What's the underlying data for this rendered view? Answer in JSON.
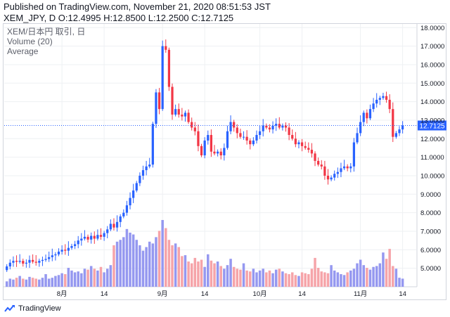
{
  "header": {
    "published": "Published on TradingView.com, November 21, 2020 08:51:53 JST",
    "ohlc": "XEM_JPY, D O:12.4995 H:12.8500 L:12.2500 C:12.7125"
  },
  "legend": {
    "symbol": "XEM/日本円 取引, 日",
    "volume": "Volume (20)",
    "average": "Average"
  },
  "footer": {
    "brand": "TradingView"
  },
  "colors": {
    "up": "#2962ff",
    "down": "#f23645",
    "vol_up": "#9598f0",
    "vol_down": "#f6a4a9",
    "last_price_line": "#2962ff"
  },
  "chart_data": {
    "type": "candlestick",
    "y_axis": {
      "min": 4.0,
      "max": 18.2,
      "ticks": [
        "18.0000",
        "17.0000",
        "16.0000",
        "15.0000",
        "14.0000",
        "13.0000",
        "12.0000",
        "11.0000",
        "10.0000",
        "9.0000",
        "8.0000",
        "7.0000",
        "6.0000",
        "5.0000"
      ],
      "tick_values": [
        18,
        17,
        16,
        15,
        14,
        13,
        12,
        11,
        10,
        9,
        8,
        7,
        6,
        5
      ]
    },
    "x_axis": {
      "labels": [
        {
          "text": "8月",
          "index": 17
        },
        {
          "text": "14",
          "index": 30
        },
        {
          "text": "9月",
          "index": 48
        },
        {
          "text": "14",
          "index": 61
        },
        {
          "text": "10月",
          "index": 78
        },
        {
          "text": "14",
          "index": 91
        },
        {
          "text": "11月",
          "index": 109
        },
        {
          "text": "14",
          "index": 122
        }
      ]
    },
    "last_price": "12.7125",
    "last_value": 12.7125,
    "closes": [
      5.1,
      5.3,
      5.4,
      5.35,
      5.4,
      5.25,
      5.3,
      5.45,
      5.35,
      5.3,
      5.4,
      5.45,
      5.5,
      5.6,
      5.7,
      5.75,
      5.9,
      6.0,
      5.95,
      6.1,
      6.2,
      6.3,
      6.5,
      6.6,
      6.7,
      6.55,
      6.75,
      6.6,
      6.8,
      6.7,
      6.9,
      7.1,
      7.4,
      7.2,
      7.5,
      7.8,
      8.0,
      8.4,
      8.8,
      9.2,
      9.6,
      10.0,
      10.3,
      10.5,
      10.6,
      12.8,
      14.5,
      13.6,
      17.0,
      16.8,
      14.8,
      13.3,
      13.6,
      13.3,
      13.2,
      13.4,
      12.9,
      12.6,
      12.4,
      11.6,
      11.1,
      11.9,
      12.2,
      11.3,
      11.2,
      11.3,
      11.1,
      11.5,
      12.4,
      12.9,
      12.6,
      12.3,
      12.1,
      12.1,
      11.9,
      11.7,
      11.9,
      12.2,
      12.4,
      12.7,
      12.6,
      12.5,
      12.7,
      12.8,
      12.6,
      12.7,
      12.6,
      12.2,
      12.0,
      11.7,
      11.8,
      11.6,
      11.5,
      11.4,
      11.2,
      10.8,
      10.6,
      10.5,
      10.0,
      9.8,
      9.9,
      10.1,
      10.2,
      10.4,
      10.5,
      10.4,
      10.5,
      11.8,
      12.3,
      12.9,
      13.4,
      13.1,
      13.6,
      13.9,
      14.1,
      14.2,
      14.3,
      14.1,
      13.6,
      12.1,
      12.3,
      12.5,
      12.71
    ],
    "opens": [
      4.9,
      5.1,
      5.3,
      5.4,
      5.35,
      5.4,
      5.25,
      5.3,
      5.45,
      5.35,
      5.3,
      5.4,
      5.45,
      5.5,
      5.6,
      5.7,
      5.75,
      5.9,
      6.0,
      5.95,
      6.1,
      6.2,
      6.3,
      6.5,
      6.6,
      6.7,
      6.55,
      6.75,
      6.6,
      6.8,
      6.7,
      6.9,
      7.1,
      7.4,
      7.2,
      7.5,
      7.8,
      8.0,
      8.4,
      8.8,
      9.2,
      9.6,
      10.0,
      10.3,
      10.5,
      10.6,
      12.8,
      14.5,
      13.6,
      17.0,
      16.8,
      14.8,
      13.3,
      13.6,
      13.3,
      13.2,
      13.4,
      12.9,
      12.6,
      12.4,
      11.6,
      11.1,
      11.9,
      12.2,
      11.3,
      11.2,
      11.3,
      11.1,
      11.5,
      12.4,
      12.9,
      12.6,
      12.3,
      12.1,
      12.1,
      11.9,
      11.7,
      11.9,
      12.2,
      12.4,
      12.7,
      12.6,
      12.5,
      12.7,
      12.8,
      12.6,
      12.7,
      12.6,
      12.2,
      12.0,
      11.7,
      11.8,
      11.6,
      11.5,
      11.4,
      11.2,
      10.8,
      10.6,
      10.5,
      10.0,
      9.8,
      9.9,
      10.1,
      10.2,
      10.4,
      10.5,
      10.4,
      10.5,
      11.8,
      12.3,
      12.9,
      13.4,
      13.1,
      13.6,
      13.9,
      14.1,
      14.2,
      14.3,
      14.1,
      13.6,
      12.1,
      12.3,
      12.5
    ],
    "volumes": [
      0.6,
      0.9,
      0.8,
      1.0,
      1.2,
      0.9,
      0.8,
      1.1,
      1.0,
      0.9,
      0.8,
      1.0,
      1.4,
      0.9,
      1.0,
      1.2,
      1.3,
      1.5,
      1.4,
      2.1,
      1.8,
      1.6,
      1.7,
      1.5,
      2.0,
      1.9,
      2.3,
      2.0,
      1.8,
      2.2,
      1.6,
      2.0,
      2.4,
      4.6,
      5.0,
      5.2,
      5.5,
      6.4,
      6.0,
      5.8,
      5.2,
      4.6,
      4.0,
      4.4,
      5.0,
      4.8,
      5.5,
      6.2,
      7.4,
      6.5,
      5.2,
      4.6,
      4.8,
      4.4,
      3.4,
      3.5,
      2.8,
      2.6,
      3.2,
      2.8,
      3.0,
      2.2,
      3.6,
      2.9,
      2.6,
      2.8,
      2.3,
      2.0,
      2.4,
      3.1,
      2.2,
      2.0,
      1.9,
      2.6,
      1.8,
      1.7,
      2.0,
      1.6,
      1.8,
      2.0,
      1.6,
      1.8,
      1.5,
      1.9,
      2.0,
      1.7,
      1.5,
      1.4,
      1.6,
      1.3,
      1.2,
      1.6,
      1.5,
      1.4,
      2.0,
      3.2,
      2.1,
      1.7,
      1.6,
      1.5,
      2.4,
      1.8,
      1.6,
      1.4,
      1.3,
      1.6,
      1.8,
      2.0,
      2.6,
      3.0,
      2.4,
      2.1,
      1.9,
      2.2,
      2.3,
      2.6,
      3.8,
      3.1,
      4.2,
      2.3,
      2.0,
      1.0,
      0.9
    ]
  }
}
